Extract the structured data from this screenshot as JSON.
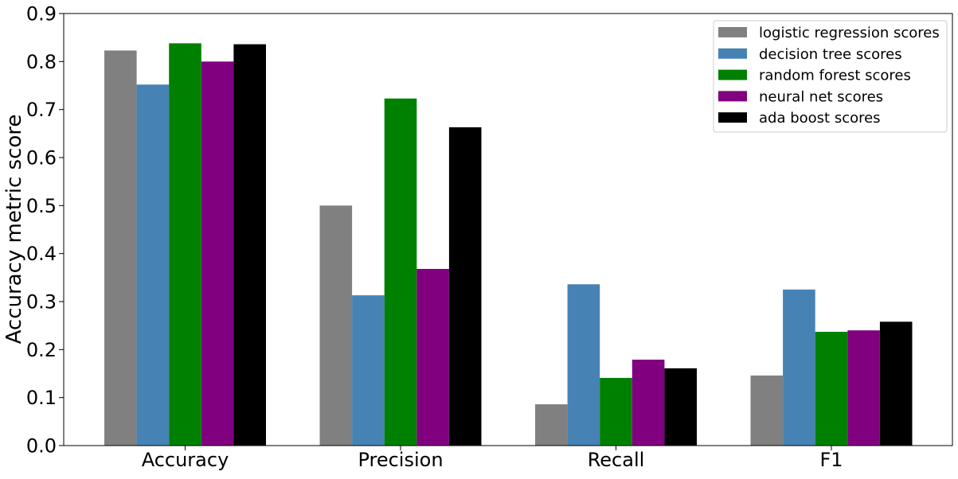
{
  "chart_data": {
    "type": "bar",
    "title": "",
    "xlabel": "",
    "ylabel": "Accuracy metric score",
    "ylim": [
      0.0,
      0.9
    ],
    "yticks": [
      "0.0",
      "0.1",
      "0.2",
      "0.3",
      "0.4",
      "0.5",
      "0.6",
      "0.7",
      "0.8",
      "0.9"
    ],
    "grid": false,
    "legend_position": "top-right",
    "categories": [
      "Accuracy",
      "Precision",
      "Recall",
      "F1"
    ],
    "series": [
      {
        "name": "logistic regression scores",
        "color": "#808080",
        "values": [
          0.823,
          0.5,
          0.086,
          0.146
        ]
      },
      {
        "name": "decision tree scores",
        "color": "#4682b4",
        "values": [
          0.752,
          0.313,
          0.336,
          0.325
        ]
      },
      {
        "name": "random forest scores",
        "color": "#008000",
        "values": [
          0.838,
          0.723,
          0.141,
          0.237
        ]
      },
      {
        "name": "neural net scores",
        "color": "#800080",
        "values": [
          0.8,
          0.368,
          0.179,
          0.24
        ]
      },
      {
        "name": "ada boost scores",
        "color": "#000000",
        "values": [
          0.836,
          0.663,
          0.161,
          0.258
        ]
      }
    ]
  }
}
